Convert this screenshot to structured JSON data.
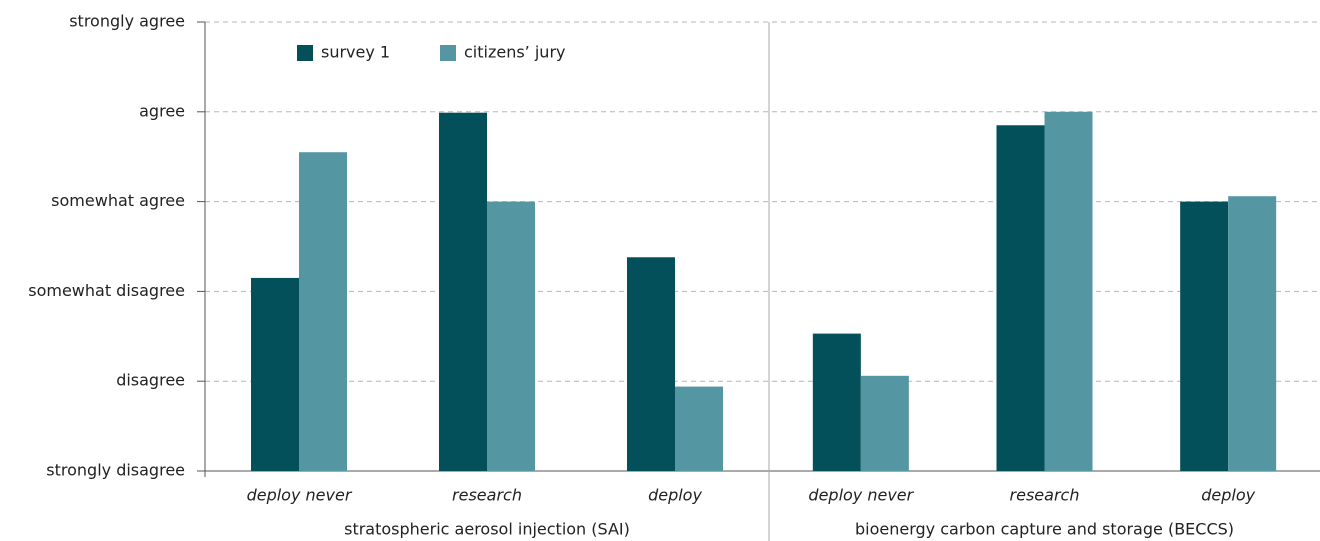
{
  "chart_data": {
    "type": "bar",
    "series": [
      {
        "name": "survey 1",
        "color": "#034f5a"
      },
      {
        "name": "citizens’ jury",
        "color": "#5497a2"
      }
    ],
    "panels": [
      {
        "label": "stratospheric aerosol injection (SAI)",
        "categories": [
          "deploy never",
          "research",
          "deploy"
        ],
        "series": [
          {
            "values": [
              3.15,
              4.99,
              3.38
            ]
          },
          {
            "values": [
              4.55,
              4.0,
              1.94
            ]
          }
        ]
      },
      {
        "label": "bioenergy carbon capture and storage (BECCS)",
        "categories": [
          "deploy never",
          "research",
          "deploy"
        ],
        "series": [
          {
            "values": [
              2.53,
              4.85,
              4.0
            ]
          },
          {
            "values": [
              2.06,
              5.0,
              4.06
            ]
          }
        ]
      }
    ],
    "ylim": [
      1,
      6
    ],
    "yticks": [
      {
        "value": 1,
        "label": "strongly disagree"
      },
      {
        "value": 2,
        "label": "disagree"
      },
      {
        "value": 3,
        "label": "somewhat disagree"
      },
      {
        "value": 4,
        "label": "somewhat agree"
      },
      {
        "value": 5,
        "label": "agree"
      },
      {
        "value": 6,
        "label": "strongly agree"
      }
    ],
    "grid": true
  }
}
